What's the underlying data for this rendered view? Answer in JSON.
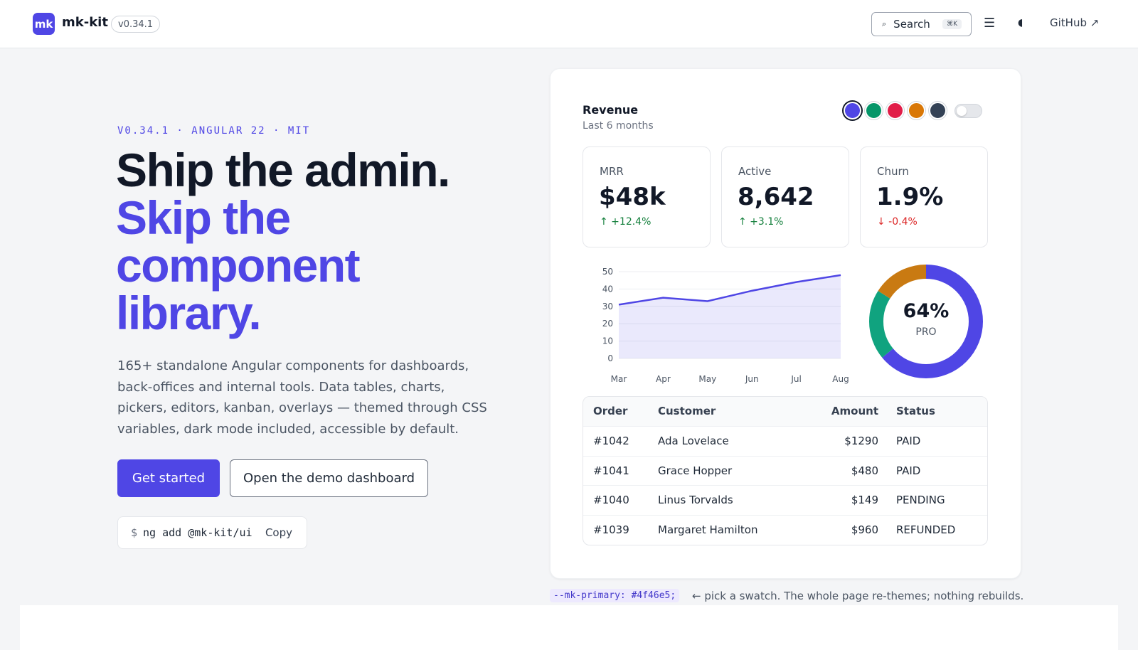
{
  "header": {
    "logo": "mk",
    "brand": "mk-kit",
    "version": "v0.34.1",
    "search_label": "Search",
    "search_shortcut": "⌘K",
    "menu_icon": "☰",
    "theme_icon": "◖",
    "github_label": "GitHub ↗"
  },
  "hero": {
    "eyebrow": "V0.34.1 · ANGULAR 22 · MIT",
    "title_line1": "Ship the admin.",
    "title_line2": "Skip the",
    "title_line3": "component",
    "title_line4": "library.",
    "description": "165+ standalone Angular components for dashboards, back-offices and internal tools. Data tables, charts, pickers, editors, kanban, overlays — themed through CSS variables, dark mode included, accessible by default.",
    "primary_cta": "Get started",
    "secondary_cta": "Open the demo dashboard",
    "install_prompt": "$",
    "install_command": "ng add @mk-kit/ui",
    "copy_label": "Copy"
  },
  "card": {
    "title": "Revenue",
    "subtitle": "Last 6 months",
    "swatches": [
      "#4f46e5",
      "#059669",
      "#e11d48",
      "#d97706",
      "#334155"
    ],
    "selected_swatch": 0,
    "stats": [
      {
        "label": "MRR",
        "value": "$48k",
        "delta": "↑ +12.4%",
        "trend": "up"
      },
      {
        "label": "Active",
        "value": "8,642",
        "delta": "↑ +3.1%",
        "trend": "up"
      },
      {
        "label": "Churn",
        "value": "1.9%",
        "delta": "↓ -0.4%",
        "trend": "down"
      }
    ],
    "donut": {
      "value": "64%",
      "label": "PRO",
      "segments": [
        64,
        20,
        16
      ],
      "colors": [
        "#4f46e5",
        "#10a37f",
        "#c97a12"
      ]
    },
    "table": {
      "headers": [
        "Order",
        "Customer",
        "Amount",
        "Status"
      ],
      "rows": [
        [
          "#1042",
          "Ada Lovelace",
          "$1290",
          "PAID"
        ],
        [
          "#1041",
          "Grace Hopper",
          "$480",
          "PAID"
        ],
        [
          "#1040",
          "Linus Torvalds",
          "$149",
          "PENDING"
        ],
        [
          "#1039",
          "Margaret Hamilton",
          "$960",
          "REFUNDED"
        ]
      ]
    }
  },
  "chart_data": {
    "type": "area",
    "categories": [
      "Mar",
      "Apr",
      "May",
      "Jun",
      "Jul",
      "Aug"
    ],
    "values": [
      31,
      35,
      33,
      39,
      44,
      48
    ],
    "yticks": [
      "0",
      "10",
      "20",
      "30",
      "40",
      "50"
    ],
    "ylim": [
      0,
      50
    ],
    "color": "#4f46e5",
    "grid": true
  },
  "footer_note": {
    "token": "--mk-primary: #4f46e5;",
    "text": "← pick a swatch. The whole page re-themes; nothing rebuilds."
  }
}
